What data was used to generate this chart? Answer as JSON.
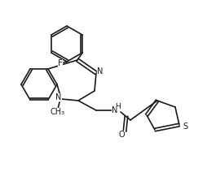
{
  "bg": "#ffffff",
  "lw": 1.2,
  "fc": "#1a1a1a",
  "atoms": {
    "F_label": "F",
    "N1_label": "N",
    "N2_label": "N",
    "CH3_label": "CH₃",
    "H_label": "H",
    "O_label": "O",
    "S_label": "S"
  }
}
